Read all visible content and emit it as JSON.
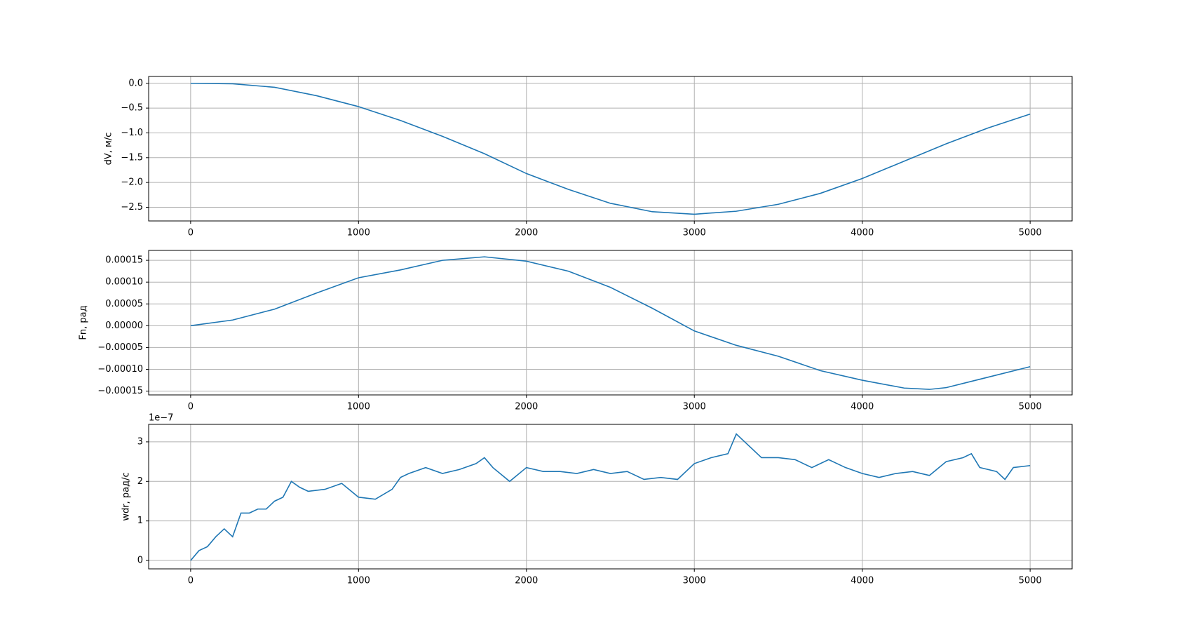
{
  "chart_data": [
    {
      "type": "line",
      "ylabel": "dV, м/с",
      "color": "#1f77b4",
      "grid": true,
      "x": [
        0,
        250,
        500,
        750,
        1000,
        1250,
        1500,
        1750,
        2000,
        2250,
        2500,
        2750,
        3000,
        3250,
        3500,
        3750,
        4000,
        4250,
        4500,
        4750,
        5000
      ],
      "values": [
        0,
        -0.01,
        -0.08,
        -0.25,
        -0.47,
        -0.75,
        -1.07,
        -1.42,
        -1.82,
        -2.14,
        -2.42,
        -2.59,
        -2.64,
        -2.58,
        -2.44,
        -2.22,
        -1.92,
        -1.57,
        -1.22,
        -0.9,
        -0.62
      ],
      "xlim": [
        -250,
        5250
      ],
      "xticks": [
        0,
        1000,
        2000,
        3000,
        4000,
        5000
      ],
      "ylim": [
        -2.776,
        0.138
      ],
      "yticks": [
        {
          "value": 0,
          "label": "0.0"
        },
        {
          "value": -0.5,
          "label": "−0.5"
        },
        {
          "value": -1,
          "label": "−1.0"
        },
        {
          "value": -1.5,
          "label": "−1.5"
        },
        {
          "value": -2,
          "label": "−2.0"
        },
        {
          "value": -2.5,
          "label": "−2.5"
        }
      ]
    },
    {
      "type": "line",
      "ylabel": "Fn, рад",
      "color": "#1f77b4",
      "grid": true,
      "x": [
        0,
        250,
        500,
        750,
        1000,
        1250,
        1500,
        1750,
        2000,
        2250,
        2500,
        2750,
        3000,
        3250,
        3500,
        3750,
        4000,
        4250,
        4400,
        4500,
        4750,
        5000
      ],
      "values": [
        0,
        1.3e-05,
        3.8e-05,
        7.5e-05,
        0.00011,
        0.000128,
        0.00015,
        0.000158,
        0.000148,
        0.000125,
        8.8e-05,
        4e-05,
        -1.2e-05,
        -4.5e-05,
        -7e-05,
        -0.000103,
        -0.000125,
        -0.000143,
        -0.000146,
        -0.000142,
        -0.000118,
        -9.4e-05
      ],
      "xlim": [
        -250,
        5250
      ],
      "xticks": [
        0,
        1000,
        2000,
        3000,
        4000,
        5000
      ],
      "ylim": [
        -0.0001587,
        0.0001727
      ],
      "yticks": [
        {
          "value": 0.00015,
          "label": "0.00015"
        },
        {
          "value": 0.0001,
          "label": "0.00010"
        },
        {
          "value": 5e-05,
          "label": "0.00005"
        },
        {
          "value": 0,
          "label": "0.00000"
        },
        {
          "value": -5e-05,
          "label": "−0.00005"
        },
        {
          "value": -0.0001,
          "label": "−0.00010"
        },
        {
          "value": -0.00015,
          "label": "−0.00015"
        }
      ]
    },
    {
      "type": "line",
      "ylabel": "wdr, рад/с",
      "offset_text": "1e−7",
      "color": "#1f77b4",
      "grid": true,
      "x": [
        0,
        50,
        100,
        150,
        200,
        250,
        300,
        350,
        400,
        450,
        500,
        550,
        600,
        650,
        700,
        800,
        900,
        1000,
        1100,
        1200,
        1250,
        1300,
        1400,
        1500,
        1600,
        1700,
        1750,
        1800,
        1900,
        2000,
        2100,
        2200,
        2300,
        2400,
        2500,
        2600,
        2700,
        2800,
        2900,
        3000,
        3100,
        3200,
        3250,
        3300,
        3400,
        3500,
        3600,
        3700,
        3800,
        3900,
        4000,
        4100,
        4200,
        4300,
        4400,
        4500,
        4600,
        4650,
        4700,
        4800,
        4850,
        4900,
        5000
      ],
      "values": [
        0,
        0.25,
        0.35,
        0.6,
        0.8,
        0.6,
        1.2,
        1.2,
        1.3,
        1.3,
        1.5,
        1.6,
        2.0,
        1.85,
        1.75,
        1.8,
        1.95,
        1.6,
        1.55,
        1.8,
        2.1,
        2.2,
        2.35,
        2.2,
        2.3,
        2.45,
        2.6,
        2.35,
        2.0,
        2.35,
        2.25,
        2.25,
        2.2,
        2.3,
        2.2,
        2.25,
        2.05,
        2.1,
        2.05,
        2.45,
        2.6,
        2.7,
        3.2,
        3.0,
        2.6,
        2.6,
        2.55,
        2.35,
        2.55,
        2.35,
        2.2,
        2.1,
        2.2,
        2.25,
        2.15,
        2.5,
        2.6,
        2.7,
        2.35,
        2.25,
        2.05,
        2.35,
        2.4
      ],
      "xlim": [
        -250,
        5250
      ],
      "xticks": [
        0,
        1000,
        2000,
        3000,
        4000,
        5000
      ],
      "ylim": [
        -0.212,
        3.442
      ],
      "yticks": [
        0,
        1,
        2,
        3
      ]
    }
  ]
}
